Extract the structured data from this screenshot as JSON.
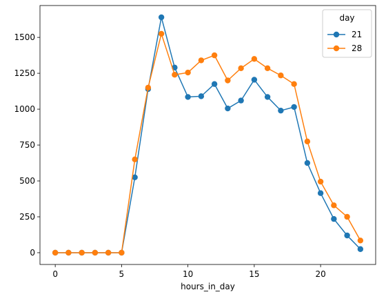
{
  "chart_data": {
    "type": "line",
    "title": "",
    "xlabel": "hours_in_day",
    "ylabel": "",
    "xlim": [
      -1.15,
      24.15
    ],
    "ylim": [
      -82,
      1722
    ],
    "xticks": [
      0,
      5,
      10,
      15,
      20
    ],
    "yticks": [
      0,
      250,
      500,
      750,
      1000,
      1250,
      1500
    ],
    "grid": false,
    "legend": {
      "title": "day",
      "placement": "top-right"
    },
    "x": [
      0,
      1,
      2,
      3,
      4,
      5,
      6,
      7,
      8,
      9,
      10,
      11,
      12,
      13,
      14,
      15,
      16,
      17,
      18,
      19,
      20,
      21,
      22,
      23
    ],
    "series": [
      {
        "name": "21",
        "color": "#1f77b4",
        "values": [
          0,
          0,
          0,
          0,
          0,
          0,
          525,
          1140,
          1640,
          1290,
          1085,
          1090,
          1175,
          1005,
          1060,
          1205,
          1085,
          990,
          1015,
          625,
          415,
          235,
          120,
          25
        ]
      },
      {
        "name": "28",
        "color": "#ff7f0e",
        "values": [
          0,
          0,
          0,
          0,
          0,
          0,
          650,
          1150,
          1525,
          1240,
          1255,
          1340,
          1375,
          1200,
          1285,
          1350,
          1285,
          1235,
          1175,
          775,
          495,
          330,
          250,
          85
        ]
      }
    ]
  }
}
